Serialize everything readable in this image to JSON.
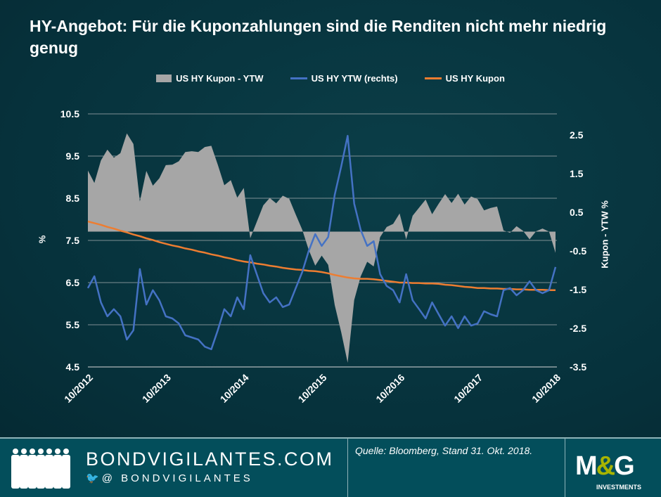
{
  "title": "HY-Angebot: Für die Kuponzahlungen sind die Renditen nicht mehr niedrig genug",
  "colors": {
    "spread": "#a6a6a6",
    "ytw": "#4472c4",
    "coupon": "#ed7d31",
    "background": "#07333d",
    "footer": "#034e5b"
  },
  "chart_data": {
    "type": "line",
    "title": "HY-Angebot: Für die Kuponzahlungen sind die Renditen nicht mehr niedrig genug",
    "legend_position": "top",
    "grid": true,
    "x_start": "10/2012",
    "x_end": "10/2018",
    "x_frequency": "monthly",
    "x_tick_labels": [
      "10/2012",
      "10/2013",
      "10/2014",
      "10/2015",
      "10/2016",
      "10/2017",
      "10/2018"
    ],
    "y_left": {
      "label": "%",
      "range": [
        4.5,
        10.5
      ],
      "ticks": [
        "10.5",
        "9.5",
        "8.5",
        "7.5",
        "6.5",
        "5.5",
        "4.5"
      ]
    },
    "y_right": {
      "label": "Kupon - YTW %",
      "range": [
        -3.5,
        2.5
      ],
      "ticks": [
        "2.5",
        "1.5",
        "0.5",
        "-0.5",
        "-1.5",
        "-2.5",
        "-3.5"
      ]
    },
    "series": [
      {
        "name": "US HY Kupon - YTW",
        "type": "area",
        "axis": "right",
        "color": "#a6a6a6",
        "values": [
          1.58,
          1.26,
          1.84,
          2.12,
          1.91,
          2.03,
          2.54,
          2.27,
          0.78,
          1.57,
          1.19,
          1.38,
          1.72,
          1.73,
          1.82,
          2.06,
          2.08,
          2.06,
          2.19,
          2.22,
          1.73,
          1.2,
          1.33,
          0.88,
          1.13,
          -0.17,
          0.25,
          0.68,
          0.87,
          0.73,
          0.93,
          0.85,
          0.44,
          0.05,
          -0.47,
          -0.88,
          -0.62,
          -0.86,
          -1.9,
          -2.6,
          -3.39,
          -1.77,
          -1.16,
          -0.78,
          -0.9,
          -0.14,
          0.12,
          0.2,
          0.47,
          -0.2,
          0.41,
          0.62,
          0.83,
          0.45,
          0.72,
          0.97,
          0.74,
          0.98,
          0.7,
          0.91,
          0.84,
          0.55,
          0.61,
          0.65,
          0.03,
          -0.03,
          0.14,
          0.02,
          -0.2,
          0.01,
          0.08,
          0.0,
          -0.55
        ]
      },
      {
        "name": "US HY YTW (rechts)",
        "type": "line",
        "axis": "left",
        "color": "#4472c4",
        "values": [
          6.37,
          6.65,
          6.03,
          5.7,
          5.87,
          5.7,
          5.15,
          5.37,
          6.82,
          5.98,
          6.32,
          6.08,
          5.7,
          5.65,
          5.53,
          5.25,
          5.2,
          5.15,
          4.98,
          4.92,
          5.37,
          5.87,
          5.7,
          6.15,
          5.87,
          7.15,
          6.7,
          6.25,
          6.03,
          6.15,
          5.92,
          5.98,
          6.37,
          6.75,
          7.25,
          7.65,
          7.37,
          7.58,
          8.58,
          9.25,
          9.98,
          8.37,
          7.75,
          7.37,
          7.48,
          6.7,
          6.42,
          6.32,
          6.03,
          6.7,
          6.08,
          5.87,
          5.65,
          6.03,
          5.75,
          5.48,
          5.7,
          5.42,
          5.7,
          5.48,
          5.53,
          5.82,
          5.75,
          5.7,
          6.32,
          6.37,
          6.2,
          6.32,
          6.53,
          6.32,
          6.25,
          6.32,
          6.87
        ]
      },
      {
        "name": "US HY Kupon",
        "type": "line",
        "axis": "left",
        "color": "#ed7d31",
        "values": [
          7.95,
          7.91,
          7.87,
          7.82,
          7.78,
          7.73,
          7.69,
          7.64,
          7.6,
          7.55,
          7.51,
          7.46,
          7.42,
          7.38,
          7.35,
          7.31,
          7.28,
          7.24,
          7.21,
          7.17,
          7.14,
          7.1,
          7.07,
          7.03,
          7.0,
          6.98,
          6.95,
          6.93,
          6.9,
          6.88,
          6.85,
          6.83,
          6.81,
          6.8,
          6.78,
          6.77,
          6.75,
          6.72,
          6.68,
          6.65,
          6.62,
          6.6,
          6.59,
          6.59,
          6.58,
          6.56,
          6.54,
          6.52,
          6.5,
          6.5,
          6.49,
          6.49,
          6.48,
          6.48,
          6.47,
          6.45,
          6.44,
          6.42,
          6.4,
          6.39,
          6.37,
          6.37,
          6.36,
          6.36,
          6.35,
          6.35,
          6.34,
          6.34,
          6.33,
          6.33,
          6.33,
          6.32,
          6.32
        ]
      }
    ]
  },
  "footer": {
    "site": "BONDVIGILANTES.COM",
    "handle": "@ BONDVIGILANTES",
    "source": "Quelle: Bloomberg, Stand 31. Okt. 2018.",
    "logo": "M&G",
    "logo_sub": "INVESTMENTS",
    "icons": {
      "people": "people-silhouette-icon",
      "twitter": "twitter-bird-icon"
    }
  }
}
